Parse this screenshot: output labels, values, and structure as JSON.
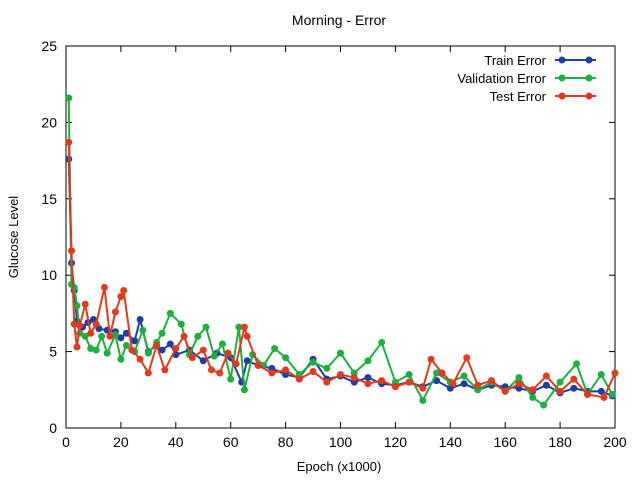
{
  "chart_data": {
    "type": "line",
    "title": "Morning - Error",
    "xlabel": "Epoch (x1000)",
    "ylabel": "Glucose Level",
    "xlim": [
      0,
      200
    ],
    "ylim": [
      0,
      25
    ],
    "xticks": [
      0,
      20,
      40,
      60,
      80,
      100,
      120,
      140,
      160,
      180,
      200
    ],
    "yticks": [
      0,
      5,
      10,
      15,
      20,
      25
    ],
    "grid": false,
    "legend_position": "top-right",
    "series": [
      {
        "name": "Train Error",
        "color": "#1f3f9f",
        "x": [
          1,
          2,
          3,
          4,
          6,
          8,
          10,
          12,
          15,
          18,
          20,
          22,
          25,
          27,
          30,
          33,
          35,
          38,
          40,
          45,
          50,
          55,
          60,
          64,
          66,
          70,
          75,
          80,
          85,
          90,
          95,
          100,
          105,
          110,
          115,
          120,
          125,
          130,
          135,
          140,
          145,
          150,
          155,
          160,
          165,
          170,
          175,
          180,
          185,
          190,
          195,
          199
        ],
        "values": [
          17.6,
          10.8,
          9.0,
          7.0,
          6.6,
          6.9,
          7.1,
          6.5,
          6.4,
          6.3,
          5.9,
          6.2,
          5.7,
          7.1,
          5.0,
          5.4,
          5.1,
          5.5,
          4.8,
          5.1,
          4.4,
          4.9,
          4.6,
          3.0,
          4.4,
          4.1,
          3.9,
          3.5,
          3.3,
          4.5,
          3.2,
          3.4,
          3.0,
          3.3,
          2.9,
          2.8,
          3.0,
          2.7,
          3.1,
          2.6,
          2.9,
          2.5,
          2.8,
          2.7,
          2.6,
          2.4,
          2.8,
          2.3,
          2.6,
          2.4,
          2.4,
          2.1
        ]
      },
      {
        "name": "Validation Error",
        "color": "#1fae3f",
        "x": [
          1,
          2,
          3,
          4,
          5,
          7,
          9,
          11,
          13,
          15,
          18,
          20,
          22,
          25,
          28,
          30,
          33,
          35,
          38,
          42,
          45,
          48,
          51,
          54,
          57,
          60,
          63,
          65,
          68,
          72,
          76,
          80,
          85,
          90,
          95,
          100,
          105,
          110,
          115,
          120,
          125,
          130,
          135,
          140,
          145,
          150,
          155,
          160,
          165,
          170,
          174,
          180,
          186,
          190,
          195,
          199
        ],
        "values": [
          21.6,
          9.4,
          9.2,
          8.0,
          6.2,
          6.0,
          5.2,
          5.1,
          6.0,
          4.9,
          6.1,
          4.5,
          5.4,
          5.0,
          6.4,
          4.9,
          5.6,
          6.2,
          7.5,
          6.8,
          4.8,
          6.0,
          6.6,
          4.7,
          5.5,
          3.2,
          6.6,
          2.5,
          4.8,
          4.1,
          5.2,
          4.6,
          3.5,
          4.3,
          3.9,
          4.9,
          3.6,
          4.4,
          5.6,
          3.0,
          3.5,
          1.8,
          3.6,
          3.0,
          3.4,
          2.5,
          3.0,
          2.4,
          3.3,
          2.0,
          1.5,
          3.0,
          4.2,
          2.2,
          3.5,
          2.2
        ]
      },
      {
        "name": "Test Error",
        "color": "#e03a1f",
        "x": [
          1,
          2,
          3,
          4,
          5,
          7,
          9,
          11,
          14,
          16,
          18,
          20,
          21,
          24,
          27,
          30,
          33,
          36,
          40,
          43,
          46,
          50,
          53,
          56,
          59,
          62,
          65,
          66,
          70,
          75,
          80,
          85,
          90,
          95,
          100,
          105,
          110,
          115,
          120,
          125,
          130,
          133,
          137,
          141,
          146,
          150,
          155,
          160,
          165,
          170,
          175,
          180,
          185,
          190,
          196,
          200
        ],
        "values": [
          18.7,
          11.6,
          6.8,
          5.3,
          6.7,
          8.1,
          6.2,
          6.8,
          9.2,
          6.0,
          7.6,
          8.6,
          9.0,
          5.1,
          4.5,
          3.6,
          5.4,
          3.8,
          5.2,
          6.0,
          4.6,
          5.1,
          3.8,
          3.6,
          4.9,
          4.2,
          6.6,
          6.0,
          4.1,
          3.6,
          3.8,
          3.2,
          3.7,
          3.0,
          3.5,
          3.3,
          2.9,
          3.1,
          2.7,
          3.0,
          2.6,
          4.5,
          3.6,
          2.9,
          4.6,
          2.8,
          3.1,
          2.4,
          2.9,
          2.5,
          3.4,
          2.4,
          3.2,
          2.2,
          2.0,
          3.6
        ]
      }
    ]
  }
}
